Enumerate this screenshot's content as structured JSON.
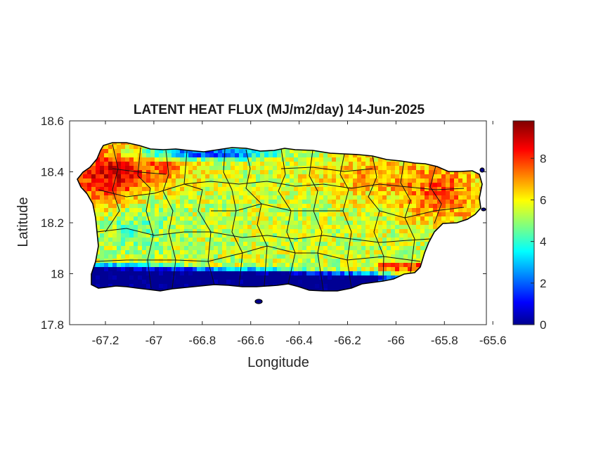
{
  "title": "LATENT HEAT FLUX (MJ/m2/day) 14-Jun-2025",
  "axes": {
    "xlabel": "Longitude",
    "ylabel": "Latitude",
    "xticks": [
      "-67.2",
      "-67",
      "-66.8",
      "-66.6",
      "-66.4",
      "-66.2",
      "-66",
      "-65.8",
      "-65.6"
    ],
    "yticks": [
      "18.6",
      "18.4",
      "18.2",
      "18",
      "17.8"
    ]
  },
  "colorbar": {
    "ticks": [
      "8",
      "6",
      "4",
      "2",
      "0"
    ],
    "colormap": "jet",
    "colors": [
      "#00008f",
      "#0000ff",
      "#00ffff",
      "#ffff00",
      "#ff0000",
      "#800000"
    ]
  },
  "chart_data": {
    "type": "heatmap",
    "title": "LATENT HEAT FLUX (MJ/m2/day) 14-Jun-2025",
    "xlabel": "Longitude",
    "ylabel": "Latitude",
    "xlim": [
      -67.3,
      -65.58
    ],
    "ylim": [
      17.8,
      18.6
    ],
    "clim": [
      0,
      9.8
    ],
    "colormap": "jet",
    "grid": false,
    "regions": [
      {
        "name": "northwest",
        "approx_value": 8.5
      },
      {
        "name": "north-central coast",
        "approx_value": 1.5
      },
      {
        "name": "east",
        "approx_value": 7.5
      },
      {
        "name": "interior",
        "approx_value": 5.5
      },
      {
        "name": "south coast",
        "approx_value": 0.5
      }
    ]
  }
}
